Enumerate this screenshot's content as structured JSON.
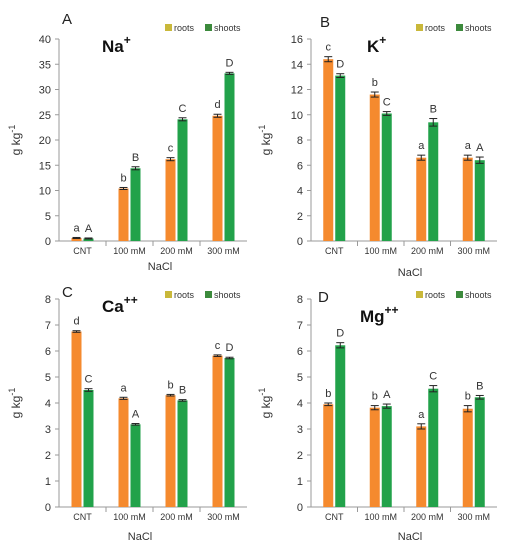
{
  "chart_data": [
    {
      "type": "bar",
      "panel": "A",
      "ion": "Na",
      "ion_charge": "+",
      "categories": [
        "CNT",
        "100 mM",
        "200 mM",
        "300 mM"
      ],
      "xlabel": "",
      "ylabel": "g kg",
      "ylabel_exp": "-1",
      "ylim": [
        0,
        40
      ],
      "ytick_step": 5,
      "yticks": [
        "0",
        "5",
        "10",
        "15",
        "20",
        "25",
        "30",
        "35",
        "40"
      ],
      "legend": "top-right",
      "series": [
        {
          "name": "roots",
          "values": [
            0.6,
            10.4,
            16.2,
            24.8
          ],
          "errors": [
            0.1,
            0.2,
            0.3,
            0.3
          ],
          "letters": [
            "a",
            "b",
            "c",
            "d"
          ]
        },
        {
          "name": "shoots",
          "values": [
            0.5,
            14.4,
            24.1,
            33.2
          ],
          "errors": [
            0.1,
            0.3,
            0.3,
            0.2
          ],
          "letters": [
            "A",
            "B",
            "C",
            "D"
          ]
        }
      ]
    },
    {
      "type": "bar",
      "panel": "B",
      "ion": "K",
      "ion_charge": "+",
      "categories": [
        "CNT",
        "100 mM",
        "200 mM",
        "300 mM"
      ],
      "xlabel": "NaCl",
      "ylabel": "g kg",
      "ylabel_exp": "-1",
      "ylim": [
        0,
        16
      ],
      "ytick_step": 2,
      "yticks": [
        "0",
        "2",
        "4",
        "6",
        "8",
        "10",
        "12",
        "14",
        "16"
      ],
      "legend": "top-right",
      "series": [
        {
          "name": "roots",
          "values": [
            14.4,
            11.6,
            6.6,
            6.6
          ],
          "errors": [
            0.2,
            0.2,
            0.2,
            0.2
          ],
          "letters": [
            "c",
            "b",
            "a",
            "a"
          ]
        },
        {
          "name": "shoots",
          "values": [
            13.1,
            10.1,
            9.4,
            6.4
          ],
          "errors": [
            0.15,
            0.15,
            0.3,
            0.25
          ],
          "letters": [
            "D",
            "C",
            "B",
            "A"
          ]
        }
      ]
    },
    {
      "type": "bar",
      "panel": "C",
      "ion": "Ca",
      "ion_charge": "++",
      "categories": [
        "CNT",
        "100 mM",
        "200 mM",
        "300 mM"
      ],
      "xlabel": "NaCl",
      "ylabel": "g kg",
      "ylabel_exp": "-1",
      "ylim": [
        0,
        8
      ],
      "ytick_step": 1,
      "yticks": [
        "0",
        "1",
        "2",
        "3",
        "4",
        "5",
        "6",
        "7",
        "8"
      ],
      "legend": "top-right",
      "series": [
        {
          "name": "roots",
          "values": [
            6.75,
            4.18,
            4.3,
            5.82
          ],
          "errors": [
            0.03,
            0.04,
            0.03,
            0.03
          ],
          "letters": [
            "d",
            "a",
            "b",
            "c"
          ]
        },
        {
          "name": "shoots",
          "values": [
            4.5,
            3.18,
            4.1,
            5.73
          ],
          "errors": [
            0.05,
            0.03,
            0.03,
            0.03
          ],
          "letters": [
            "C",
            "A",
            "B",
            "D"
          ]
        }
      ]
    },
    {
      "type": "bar",
      "panel": "D",
      "ion": "Mg",
      "ion_charge": "++",
      "categories": [
        "CNT",
        "100 mM",
        "200 mM",
        "300 mM"
      ],
      "xlabel": "NaCl",
      "ylabel": "g kg",
      "ylabel_exp": "-1",
      "ylim": [
        0,
        8
      ],
      "ytick_step": 1,
      "yticks": [
        "0",
        "1",
        "2",
        "3",
        "4",
        "5",
        "6",
        "7",
        "8"
      ],
      "legend": "top-right",
      "series": [
        {
          "name": "roots",
          "values": [
            3.95,
            3.82,
            3.1,
            3.78
          ],
          "errors": [
            0.05,
            0.08,
            0.1,
            0.12
          ],
          "letters": [
            "b",
            "b",
            "a",
            "b"
          ]
        },
        {
          "name": "shoots",
          "values": [
            6.22,
            3.88,
            4.55,
            4.22
          ],
          "errors": [
            0.1,
            0.08,
            0.12,
            0.07
          ],
          "letters": [
            "D",
            "A",
            "C",
            "B"
          ]
        }
      ]
    }
  ],
  "colors": {
    "roots": "#f58a2e",
    "shoots": "#22a24a",
    "roots_legend": "#c9b83a",
    "shoots_legend": "#3c8a3c",
    "axis": "#9a9a9a",
    "text": "#333333"
  }
}
